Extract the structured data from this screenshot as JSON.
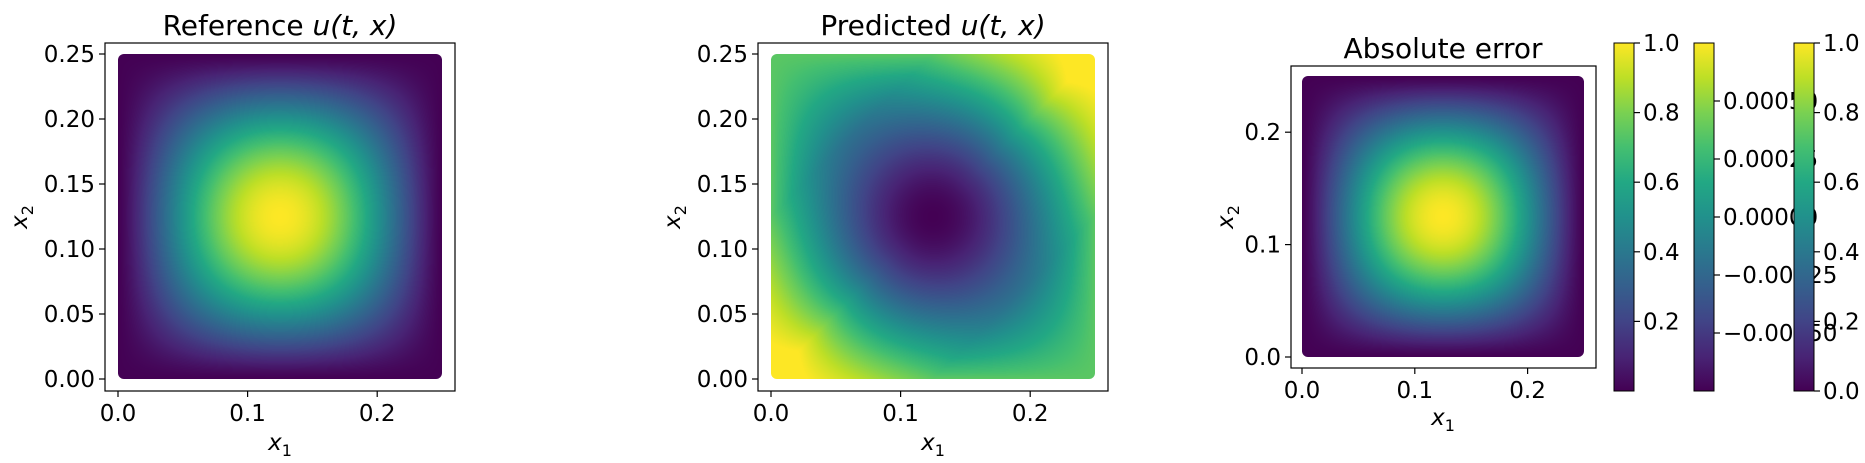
{
  "chart_data": [
    {
      "type": "heatmap",
      "title_prefix": "Reference ",
      "title_math": "u(t, x)",
      "xlabel": "x",
      "xlabel_sub": "1",
      "ylabel": "x",
      "ylabel_sub": "2",
      "x_ticks": [
        "0.0",
        "0.1",
        "0.2"
      ],
      "y_ticks": [
        "0.00",
        "0.05",
        "0.10",
        "0.15",
        "0.20",
        "0.25"
      ],
      "xlim": [
        -0.01,
        0.265
      ],
      "ylim": [
        -0.01,
        0.265
      ],
      "data_extent": [
        0,
        0.25
      ],
      "field": "peak",
      "peak_center": [
        0.125,
        0.125
      ],
      "colormap": "viridis"
    },
    {
      "type": "heatmap",
      "title_prefix": "Predicted ",
      "title_math": "u(t, x)",
      "xlabel": "x",
      "xlabel_sub": "1",
      "ylabel": "x",
      "ylabel_sub": "2",
      "x_ticks": [
        "0.0",
        "0.1",
        "0.2"
      ],
      "y_ticks": [
        "0.00",
        "0.05",
        "0.10",
        "0.15",
        "0.20",
        "0.25"
      ],
      "xlim": [
        -0.01,
        0.265
      ],
      "ylim": [
        -0.01,
        0.265
      ],
      "data_extent": [
        0,
        0.25
      ],
      "field": "valley",
      "valley_center": [
        0.125,
        0.125
      ],
      "colormap": "viridis"
    },
    {
      "type": "heatmap",
      "title": "Absolute error",
      "xlabel": "x",
      "xlabel_sub": "1",
      "ylabel": "x",
      "ylabel_sub": "2",
      "x_ticks": [
        "0.0",
        "0.1",
        "0.2"
      ],
      "y_ticks": [
        "0.0",
        "0.1",
        "0.2"
      ],
      "xlim": [
        -0.01,
        0.265
      ],
      "ylim": [
        -0.01,
        0.265
      ],
      "data_extent": [
        0,
        0.25
      ],
      "field": "peak",
      "peak_center": [
        0.125,
        0.125
      ],
      "colormap": "viridis"
    }
  ],
  "colorbars": [
    {
      "range": [
        0.0,
        1.0
      ],
      "ticks": [
        "0.2",
        "0.4",
        "0.6",
        "0.8",
        "1.0"
      ],
      "tick_values": [
        0.2,
        0.4,
        0.6,
        0.8,
        1.0
      ]
    },
    {
      "range": [
        -0.00075,
        0.00075
      ],
      "ticks": [
        "−0.00050",
        "−0.00025",
        "0.00000",
        "0.00025",
        "0.00050"
      ],
      "tick_values": [
        -0.0005,
        -0.00025,
        0,
        0.00025,
        0.0005
      ]
    },
    {
      "range": [
        0.0,
        1.0
      ],
      "ticks": [
        "0.0",
        "0.2",
        "0.4",
        "0.6",
        "0.8",
        "1.0"
      ],
      "tick_values": [
        0,
        0.2,
        0.4,
        0.6,
        0.8,
        1.0
      ]
    }
  ]
}
